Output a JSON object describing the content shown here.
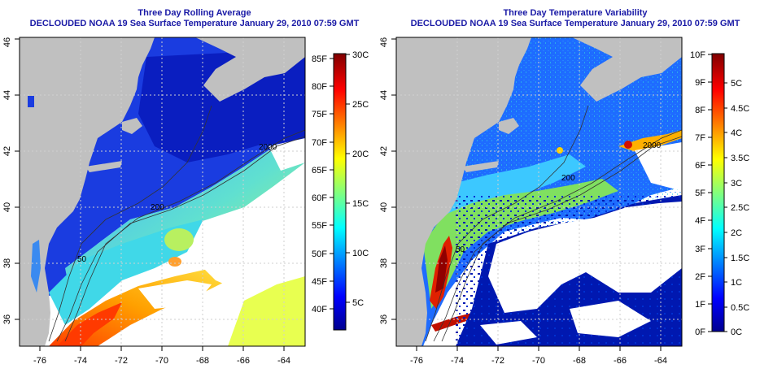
{
  "left_panel": {
    "title_line1": "Three Day Rolling Average",
    "title_line2": "DECLOUDED NOAA 19 Sea Surface Temperature January 29, 2010 07:59 GMT",
    "colorbar_f": [
      "40F",
      "45F",
      "50F",
      "55F",
      "60F",
      "65F",
      "70F",
      "75F",
      "80F",
      "85F"
    ],
    "colorbar_c": [
      "5C",
      "10C",
      "15C",
      "20C",
      "25C",
      "30C"
    ],
    "contours": [
      "2000",
      "200",
      "50"
    ]
  },
  "right_panel": {
    "title_line1": "Three Day Temperature Variability",
    "title_line2": "DECLOUDED NOAA 19 Sea Surface Temperature January 29, 2010 07:59 GMT",
    "colorbar_f": [
      "0F",
      "1F",
      "2F",
      "3F",
      "4F",
      "5F",
      "6F",
      "7F",
      "8F",
      "9F",
      "10F"
    ],
    "colorbar_c": [
      "0C",
      "0.5C",
      "1C",
      "1.5C",
      "2C",
      "2.5C",
      "3C",
      "3.5C",
      "4C",
      "4.5C",
      "5C"
    ],
    "contours": [
      "2000",
      "200",
      "50"
    ]
  },
  "lon_ticks": [
    "-76",
    "-74",
    "-72",
    "-70",
    "-68",
    "-66",
    "-64"
  ],
  "lat_ticks": [
    "36",
    "38",
    "40",
    "42",
    "44",
    "46"
  ],
  "colors": {
    "land": "#c0c0c0",
    "cloud": "#ffffff",
    "title": "#1a1aa6",
    "grid": "#cfcfcf"
  }
}
